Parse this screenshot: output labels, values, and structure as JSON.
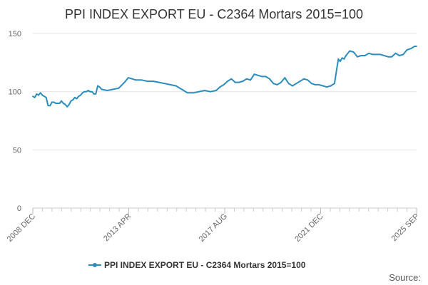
{
  "chart_data": {
    "type": "line",
    "title": "PPI INDEX EXPORT EU - C2364 Mortars 2015=100",
    "xlabel": "",
    "ylabel": "",
    "ylim": [
      0,
      150
    ],
    "y_ticks": [
      "0",
      "50",
      "100",
      "150"
    ],
    "x_tick_labels": [
      "2008 DEC",
      "2013 APR",
      "2017 AUG",
      "2021 DEC",
      "2025 SEP"
    ],
    "x_range": [
      "2008-12",
      "2025-09"
    ],
    "grid": "horizontal",
    "legend_position": "bottom",
    "color": "#2b8cbe",
    "series": [
      {
        "name": "PPI INDEX EXPORT EU - C2364 Mortars 2015=100",
        "x": [
          "2008-12",
          "2009-01",
          "2009-02",
          "2009-03",
          "2009-04",
          "2009-05",
          "2009-06",
          "2009-07",
          "2009-08",
          "2009-09",
          "2009-10",
          "2009-11",
          "2009-12",
          "2010-01",
          "2010-02",
          "2010-03",
          "2010-04",
          "2010-05",
          "2010-06",
          "2010-07",
          "2010-08",
          "2010-09",
          "2010-10",
          "2010-11",
          "2010-12",
          "2011-01",
          "2011-02",
          "2011-03",
          "2011-04",
          "2011-05",
          "2011-06",
          "2011-07",
          "2011-08",
          "2011-09",
          "2011-10",
          "2011-11",
          "2011-12",
          "2012-03",
          "2012-06",
          "2012-09",
          "2012-12",
          "2013-02",
          "2013-04",
          "2013-06",
          "2013-09",
          "2013-12",
          "2014-03",
          "2014-06",
          "2014-09",
          "2014-12",
          "2015-03",
          "2015-06",
          "2015-09",
          "2015-12",
          "2016-03",
          "2016-06",
          "2016-09",
          "2016-12",
          "2017-02",
          "2017-04",
          "2017-06",
          "2017-08",
          "2017-10",
          "2017-12",
          "2018-02",
          "2018-04",
          "2018-06",
          "2018-08",
          "2018-10",
          "2018-12",
          "2019-02",
          "2019-04",
          "2019-06",
          "2019-08",
          "2019-10",
          "2019-12",
          "2020-02",
          "2020-04",
          "2020-06",
          "2020-08",
          "2020-10",
          "2020-12",
          "2021-02",
          "2021-04",
          "2021-06",
          "2021-08",
          "2021-10",
          "2021-12",
          "2022-02",
          "2022-04",
          "2022-05",
          "2022-06",
          "2022-07",
          "2022-08",
          "2022-10",
          "2022-12",
          "2023-02",
          "2023-04",
          "2023-06",
          "2023-08",
          "2023-10",
          "2023-12",
          "2024-02",
          "2024-04",
          "2024-06",
          "2024-08",
          "2024-10",
          "2024-12",
          "2025-02",
          "2025-04",
          "2025-06",
          "2025-08",
          "2025-09"
        ],
        "y": [
          96,
          95,
          98,
          97,
          99,
          97,
          96,
          95,
          88,
          88,
          91,
          91,
          90,
          90,
          90,
          92,
          90,
          89,
          87,
          89,
          92,
          93,
          95,
          94,
          96,
          97,
          99,
          100,
          100,
          101,
          100,
          100,
          98,
          98,
          105,
          104,
          102,
          101,
          102,
          103,
          108,
          112,
          111,
          110,
          110,
          109,
          109,
          108,
          107,
          106,
          105,
          102,
          99,
          99,
          100,
          101,
          100,
          101,
          104,
          106,
          109,
          111,
          108,
          108,
          109,
          111,
          110,
          115,
          114,
          113,
          113,
          111,
          107,
          106,
          108,
          112,
          107,
          105,
          107,
          109,
          111,
          110,
          107,
          106,
          106,
          105,
          104,
          105,
          107,
          128,
          126,
          129,
          128,
          131,
          135,
          134,
          130,
          131,
          131,
          133,
          132,
          132,
          132,
          131,
          130,
          130,
          133,
          131,
          132,
          136,
          137,
          139,
          139
        ]
      }
    ]
  },
  "legend": {
    "label": "PPI INDEX EXPORT EU - C2364 Mortars 2015=100"
  },
  "footer": {
    "source_label": "Source:"
  }
}
